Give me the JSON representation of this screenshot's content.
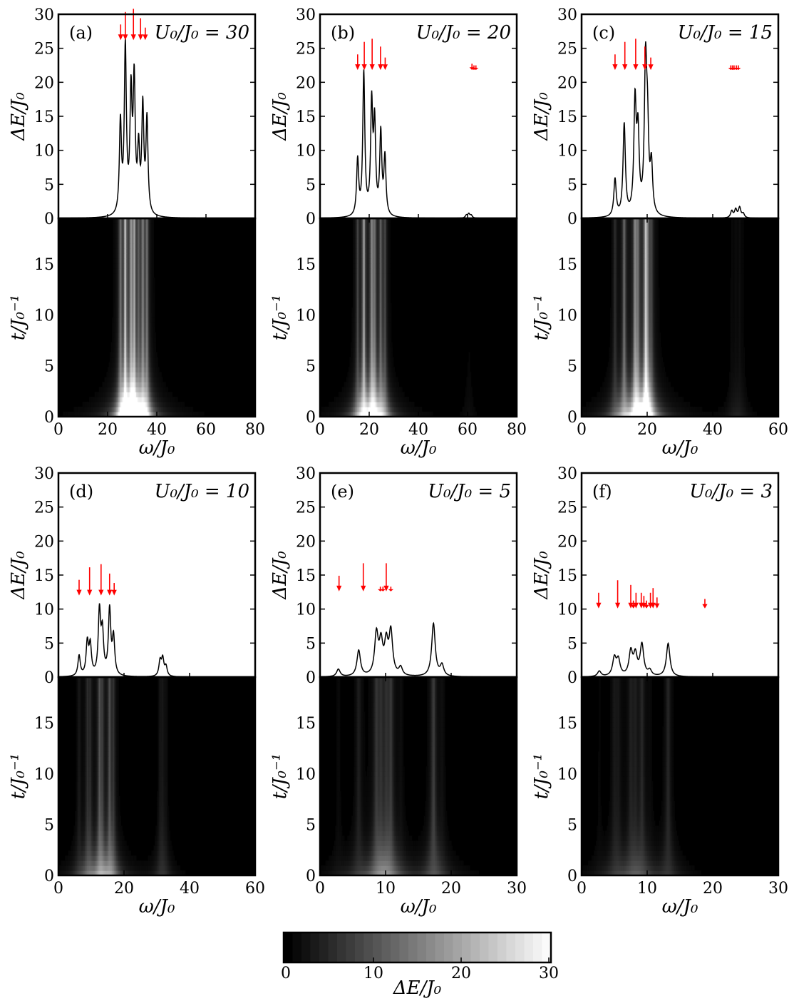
{
  "figure": {
    "colors": {
      "line": "#000000",
      "arrow": "#ff0000",
      "heatmap_low": "#000000",
      "heatmap_high": "#ffffff"
    },
    "colorbar": {
      "ticks": [
        "0",
        "10",
        "20",
        "30"
      ],
      "label": "ΔE/J₀",
      "range": [
        0,
        30
      ]
    }
  },
  "chart_data": [
    {
      "label": "(a)",
      "param": "U₀/J₀ = 30",
      "type": "line",
      "xlabel": "ω/J₀",
      "ylabel": "ΔE/J₀",
      "ylim": [
        0,
        30
      ],
      "xlim": [
        0,
        80
      ],
      "yticks": [
        "0",
        "5",
        "10",
        "15",
        "20",
        "25",
        "30"
      ],
      "xticks": [
        "0",
        "20",
        "40",
        "60",
        "80"
      ],
      "peaks": [
        [
          25.2,
          13.5
        ],
        [
          27.2,
          24.5
        ],
        [
          29.5,
          17
        ],
        [
          30.8,
          19
        ],
        [
          32.6,
          9
        ],
        [
          34.3,
          15.5
        ],
        [
          36,
          13.8
        ]
      ],
      "arrows": [
        [
          25.3,
          1
        ],
        [
          27.2,
          1.8
        ],
        [
          30.5,
          2
        ],
        [
          33.4,
          1.4
        ],
        [
          35.3,
          0.8
        ]
      ],
      "arrow_base": 26.2,
      "heatmap": {
        "type": "heatmap",
        "ylabel": "t/J₀⁻¹",
        "ylim": [
          0,
          19.5
        ],
        "yticks": [
          "0",
          "5",
          "10",
          "15"
        ]
      }
    },
    {
      "label": "(b)",
      "param": "U₀/J₀ = 20",
      "type": "line",
      "xlabel": "ω/J₀",
      "ylabel": "ΔE/J₀",
      "ylim": [
        0,
        30
      ],
      "xlim": [
        0,
        80
      ],
      "yticks": [
        "0",
        "5",
        "10",
        "15",
        "20",
        "25",
        "30"
      ],
      "xticks": [
        "0",
        "20",
        "40",
        "60",
        "80"
      ],
      "peaks": [
        [
          15.3,
          8.2
        ],
        [
          17.8,
          21
        ],
        [
          21,
          16
        ],
        [
          22.2,
          13
        ],
        [
          24.7,
          12
        ],
        [
          26.4,
          8.5
        ],
        [
          59.5,
          0.4
        ],
        [
          60.5,
          0.6
        ],
        [
          61.5,
          0.4
        ]
      ],
      "arrows": [
        [
          15.3,
          1
        ],
        [
          18,
          1.8
        ],
        [
          21.2,
          2
        ],
        [
          24.6,
          1.5
        ],
        [
          26.5,
          0.8
        ],
        [
          61.8,
          0.4
        ],
        [
          62.6,
          0.3
        ],
        [
          63.4,
          0.3
        ]
      ],
      "arrow_base": 21.8,
      "heatmap": {
        "type": "heatmap",
        "ylabel": "t/J₀⁻¹",
        "ylim": [
          0,
          19.5
        ],
        "yticks": [
          "0",
          "5",
          "10",
          "15"
        ]
      }
    },
    {
      "label": "(c)",
      "param": "U₀/J₀ = 15",
      "type": "line",
      "xlabel": "ω/J₀",
      "ylabel": "ΔE/J₀",
      "ylim": [
        0,
        30
      ],
      "xlim": [
        0,
        60
      ],
      "yticks": [
        "0",
        "5",
        "10",
        "15",
        "20",
        "25",
        "30"
      ],
      "xticks": [
        "0",
        "20",
        "40",
        "60"
      ],
      "peaks": [
        [
          10.2,
          5.5
        ],
        [
          13,
          13.5
        ],
        [
          16.3,
          16.2
        ],
        [
          17.2,
          11.3
        ],
        [
          19.5,
          21
        ],
        [
          20.1,
          11
        ],
        [
          21.3,
          7
        ],
        [
          45.8,
          1
        ],
        [
          47,
          1.2
        ],
        [
          48.2,
          1.5
        ],
        [
          49.3,
          0.6
        ]
      ],
      "arrows": [
        [
          10.2,
          1
        ],
        [
          13.2,
          1.8
        ],
        [
          16.5,
          2
        ],
        [
          19.3,
          1.5
        ],
        [
          21.1,
          0.8
        ],
        [
          45.5,
          0.3
        ],
        [
          46,
          0.3
        ],
        [
          46.5,
          0.3
        ],
        [
          47.2,
          0.3
        ],
        [
          47.8,
          0.3
        ]
      ],
      "arrow_base": 21.8,
      "heatmap": {
        "type": "heatmap",
        "ylabel": "t/J₀⁻¹",
        "ylim": [
          0,
          19.5
        ],
        "yticks": [
          "0",
          "5",
          "10",
          "15"
        ]
      }
    },
    {
      "label": "(d)",
      "param": "U₀/J₀ = 10",
      "type": "line",
      "xlabel": "ω/J₀",
      "ylabel": "ΔE/J₀",
      "ylim": [
        0,
        30
      ],
      "xlim": [
        0,
        60
      ],
      "yticks": [
        "0",
        "5",
        "10",
        "15",
        "20",
        "25",
        "30"
      ],
      "xticks": [
        "0",
        "20",
        "40",
        "60"
      ],
      "peaks": [
        [
          6.3,
          3
        ],
        [
          8.8,
          4.8
        ],
        [
          9.7,
          4.3
        ],
        [
          12.5,
          9.3
        ],
        [
          13.4,
          6
        ],
        [
          15.6,
          9.6
        ],
        [
          16.8,
          5.5
        ],
        [
          31,
          2.2
        ],
        [
          31.8,
          2.5
        ],
        [
          32.8,
          1.4
        ]
      ],
      "arrows": [
        [
          6.3,
          1
        ],
        [
          9.5,
          1.8
        ],
        [
          13,
          2
        ],
        [
          15.6,
          1.4
        ],
        [
          17,
          0.8
        ]
      ],
      "arrow_base": 12,
      "heatmap": {
        "type": "heatmap",
        "ylabel": "t/J₀⁻¹",
        "ylim": [
          0,
          19.5
        ],
        "yticks": [
          "0",
          "5",
          "10",
          "15"
        ]
      }
    },
    {
      "label": "(e)",
      "param": "U₀/J₀ = 5",
      "type": "line",
      "xlabel": "ω/J₀",
      "ylabel": "ΔE/J₀",
      "ylim": [
        0,
        30
      ],
      "xlim": [
        0,
        30
      ],
      "yticks": [
        "0",
        "5",
        "10",
        "15",
        "20",
        "25",
        "30"
      ],
      "xticks": [
        "0",
        "10",
        "20",
        "30"
      ],
      "peaks": [
        [
          2.8,
          1.1
        ],
        [
          5.9,
          3.8
        ],
        [
          8.6,
          6
        ],
        [
          9.3,
          4.5
        ],
        [
          10.1,
          4.5
        ],
        [
          10.8,
          6.3
        ],
        [
          12.3,
          1.2
        ],
        [
          17.3,
          7.8
        ],
        [
          18.6,
          1.6
        ]
      ],
      "arrows": [
        [
          2.9,
          1
        ],
        [
          6.6,
          1.8
        ],
        [
          9.2,
          0.3
        ],
        [
          9.6,
          0.3
        ],
        [
          10.1,
          1.8
        ],
        [
          10.8,
          0.3
        ]
      ],
      "arrow_base": 12.6,
      "heatmap": {
        "type": "heatmap",
        "ylabel": "t/J₀⁻¹",
        "ylim": [
          0,
          19.5
        ],
        "yticks": [
          "0",
          "5",
          "10",
          "15"
        ]
      }
    },
    {
      "label": "(f)",
      "param": "U₀/J₀ = 3",
      "type": "line",
      "xlabel": "ω/J₀",
      "ylabel": "ΔE/J₀",
      "ylim": [
        0,
        30
      ],
      "xlim": [
        0,
        30
      ],
      "yticks": [
        "0",
        "5",
        "10",
        "15",
        "20",
        "25",
        "30"
      ],
      "xticks": [
        "0",
        "10",
        "20",
        "30"
      ],
      "peaks": [
        [
          2.7,
          0.8
        ],
        [
          5,
          2.6
        ],
        [
          5.6,
          2.3
        ],
        [
          7.5,
          3.5
        ],
        [
          8.2,
          3
        ],
        [
          9.2,
          4.6
        ],
        [
          10.4,
          0.8
        ],
        [
          13.2,
          4.9
        ]
      ],
      "arrows": [
        [
          2.6,
          1
        ],
        [
          5.5,
          1.8
        ],
        [
          7.5,
          1.5
        ],
        [
          7.9,
          0.5
        ],
        [
          8.3,
          1
        ],
        [
          9.1,
          1
        ],
        [
          9.5,
          0.8
        ],
        [
          9.9,
          0.5
        ],
        [
          10.5,
          1
        ],
        [
          10.9,
          1.3
        ],
        [
          11.5,
          0.7
        ],
        [
          18.8,
          0.6
        ]
      ],
      "arrow_base": 10.1,
      "heatmap": {
        "type": "heatmap",
        "ylabel": "t/J₀⁻¹",
        "ylim": [
          0,
          19.5
        ],
        "yticks": [
          "0",
          "5",
          "10",
          "15"
        ]
      }
    }
  ]
}
